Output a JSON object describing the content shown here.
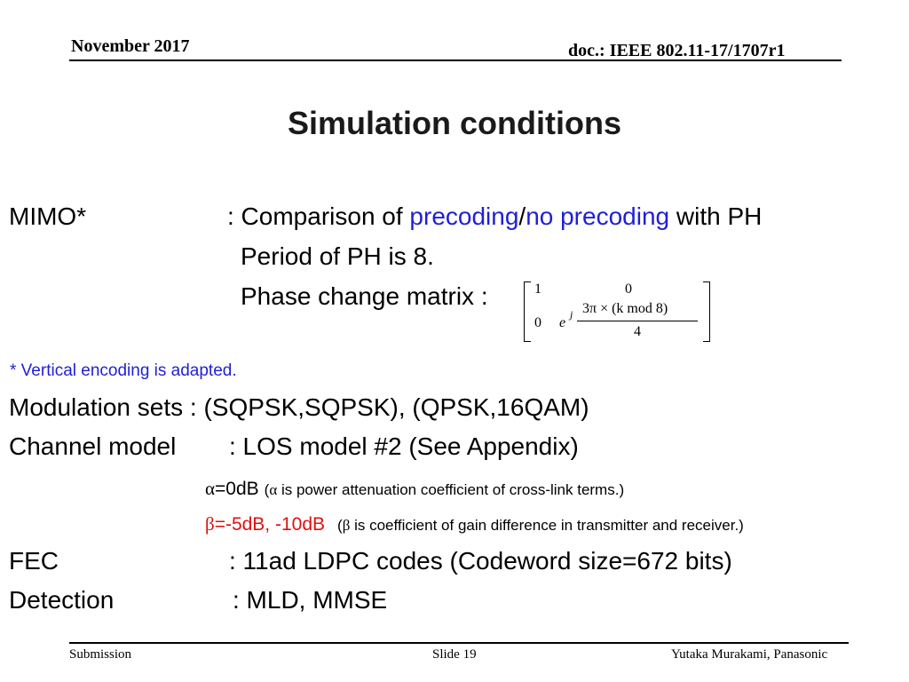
{
  "header": {
    "date": "November 2017",
    "doc": "doc.: IEEE 802.11-17/1707r1"
  },
  "title": "Simulation conditions",
  "mimo": {
    "label": "MIMO*",
    "colon_prefix": ": Comparison of ",
    "precoding": "precoding",
    "slash": "/",
    "no_precoding": "no precoding",
    "suffix": " with PH",
    "period_line": "Period of PH is 8.",
    "phase_label": "Phase change matrix :"
  },
  "matrix": {
    "r1c1": "1",
    "r1c2": "0",
    "r2c1": "0",
    "e": "e",
    "j": "j",
    "numerator": "3π × (k mod 8)",
    "denominator": "4"
  },
  "footnote": "* Vertical encoding is adapted.",
  "modulation": "Modulation sets :  (SQPSK,SQPSK), (QPSK,16QAM)",
  "channel": {
    "label": "Channel model",
    "value": ": LOS model #2 (See Appendix)"
  },
  "alpha": {
    "symbol": "α",
    "value": "=0dB",
    "note_open": "(",
    "note_symbol": "α",
    "note_text": " is power attenuation coefficient of cross-link terms.)"
  },
  "beta": {
    "symbol": "β",
    "value": "=-5dB, -10dB",
    "note_open": "(",
    "note_symbol": "β",
    "note_text": " is coefficient of gain difference in transmitter and receiver.)"
  },
  "fec": {
    "label": "FEC",
    "value": ": 11ad LDPC codes (Codeword size=672 bits)"
  },
  "detection": {
    "label": "Detection",
    "value": ": MLD, MMSE"
  },
  "footer": {
    "left": "Submission",
    "center": "Slide 19",
    "right": "Yutaka Murakami, Panasonic"
  }
}
